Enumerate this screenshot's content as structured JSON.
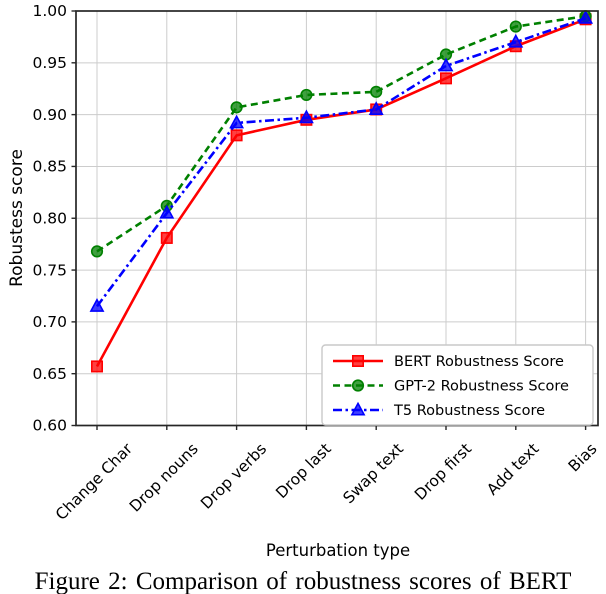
{
  "figure": {
    "caption": "Figure 2: Comparison of robustness scores of BERT"
  },
  "chart_data": {
    "type": "line",
    "title": "",
    "xlabel": "Perturbation type",
    "ylabel": "Robustess score",
    "categories": [
      "Change Char",
      "Drop nouns",
      "Drop verbs",
      "Drop last",
      "Swap text",
      "Drop first",
      "Add text",
      "Bias"
    ],
    "series": [
      {
        "key": "bert",
        "name": "BERT Robustness Score",
        "color": "#ff0000",
        "linestyle": "solid",
        "marker": "square",
        "values": [
          0.657,
          0.781,
          0.88,
          0.895,
          0.905,
          0.935,
          0.966,
          0.992
        ]
      },
      {
        "key": "gpt2",
        "name": "GPT-2 Robustness Score",
        "color": "#008000",
        "linestyle": "dashed",
        "marker": "circle",
        "values": [
          0.768,
          0.812,
          0.907,
          0.919,
          0.922,
          0.958,
          0.985,
          0.995
        ]
      },
      {
        "key": "t5",
        "name": "T5 Robustness Score",
        "color": "#0000ff",
        "linestyle": "dashdot",
        "marker": "triangle",
        "values": [
          0.715,
          0.805,
          0.892,
          0.897,
          0.905,
          0.947,
          0.97,
          0.993
        ]
      }
    ],
    "ylim": [
      0.6,
      1.0
    ],
    "ytick_step": 0.05,
    "ytick_format_decimals": 2,
    "grid": true,
    "grid_color": "#cccccc",
    "spine_color": "#262626",
    "legend_position": "lower right",
    "legend_border_color": "#c9c9c9",
    "xtick_rotation": -45
  }
}
